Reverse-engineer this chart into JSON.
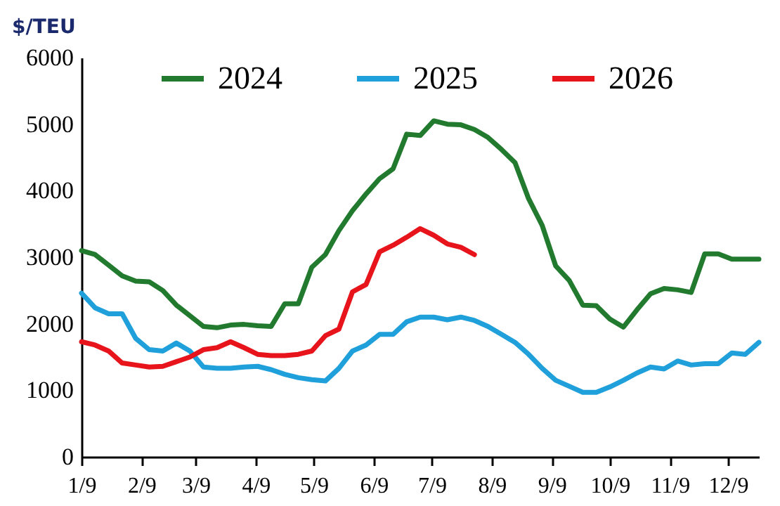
{
  "chart_data": {
    "type": "line",
    "ylabel": "$/TEU",
    "x": [
      "--01-09",
      "--01-16",
      "--01-23",
      "--01-30",
      "--02-06",
      "--02-13",
      "--02-20",
      "--02-27",
      "--03-06",
      "--03-13",
      "--03-20",
      "--03-27",
      "--04-03",
      "--04-10",
      "--04-17",
      "--04-24",
      "--05-01",
      "--05-08",
      "--05-15",
      "--05-22",
      "--05-29",
      "--06-05",
      "--06-12",
      "--06-19",
      "--06-26",
      "--07-03",
      "--07-10",
      "--07-17",
      "--07-24",
      "--07-31",
      "--08-07",
      "--08-14",
      "--08-21",
      "--08-28",
      "--09-04",
      "--09-11",
      "--09-18",
      "--09-25",
      "--10-02",
      "--10-09",
      "--10-16",
      "--10-23",
      "--10-30",
      "--11-06",
      "--11-13",
      "--11-20",
      "--11-27",
      "--12-04",
      "--12-11",
      "--12-18",
      "--12-25"
    ],
    "series": [
      {
        "name": "2024",
        "color": "#217a2e",
        "values": [
          3100,
          3040,
          2880,
          2720,
          2640,
          2630,
          2500,
          2280,
          2120,
          1960,
          1940,
          1980,
          1990,
          1970,
          1960,
          2300,
          2300,
          2850,
          3040,
          3400,
          3700,
          3950,
          4180,
          4330,
          4850,
          4830,
          5050,
          5000,
          4990,
          4920,
          4800,
          4620,
          4420,
          3880,
          3480,
          2870,
          2650,
          2280,
          2270,
          2070,
          1950,
          2210,
          2450,
          2530,
          2510,
          2470,
          3050,
          3050,
          2970,
          2970,
          2970
        ]
      },
      {
        "name": "2025",
        "color": "#1fa0da",
        "values": [
          2460,
          2240,
          2150,
          2150,
          1780,
          1610,
          1590,
          1710,
          1590,
          1350,
          1330,
          1330,
          1350,
          1360,
          1310,
          1240,
          1190,
          1160,
          1140,
          1330,
          1590,
          1680,
          1840,
          1840,
          2030,
          2100,
          2100,
          2060,
          2100,
          2050,
          1960,
          1840,
          1720,
          1540,
          1330,
          1150,
          1060,
          970,
          970,
          1050,
          1150,
          1260,
          1350,
          1320,
          1440,
          1380,
          1400,
          1400,
          1560,
          1540,
          1720
        ]
      },
      {
        "name": "2026",
        "color": "#e8141b",
        "values": [
          1730,
          1680,
          1590,
          1410,
          1380,
          1350,
          1360,
          1430,
          1500,
          1610,
          1640,
          1730,
          1640,
          1540,
          1520,
          1520,
          1540,
          1590,
          1820,
          1920,
          2480,
          2590,
          3080,
          3180,
          3300,
          3430,
          3330,
          3200,
          3150,
          3040,
          null,
          null,
          null,
          null,
          null,
          null,
          null,
          null,
          null,
          null,
          null,
          null,
          null,
          null,
          null,
          null,
          null,
          null,
          null,
          null,
          null
        ]
      }
    ],
    "xlim": [
      "--01-09",
      "--12-25"
    ],
    "xticks": [
      {
        "value": "--01-09",
        "label": "1/9"
      },
      {
        "value": "--02-09",
        "label": "2/9"
      },
      {
        "value": "--03-09",
        "label": "3/9"
      },
      {
        "value": "--04-09",
        "label": "4/9"
      },
      {
        "value": "--05-09",
        "label": "5/9"
      },
      {
        "value": "--06-09",
        "label": "6/9"
      },
      {
        "value": "--07-09",
        "label": "7/9"
      },
      {
        "value": "--08-09",
        "label": "8/9"
      },
      {
        "value": "--09-09",
        "label": "9/9"
      },
      {
        "value": "--10-09",
        "label": "10/9"
      },
      {
        "value": "--11-09",
        "label": "11/9"
      },
      {
        "value": "--12-09",
        "label": "12/9"
      }
    ],
    "ylim": [
      0,
      6000
    ],
    "yticks": [
      0,
      1000,
      2000,
      3000,
      4000,
      5000,
      6000
    ],
    "grid": false,
    "legend": "top",
    "marker": "none",
    "line_style": "solid"
  }
}
